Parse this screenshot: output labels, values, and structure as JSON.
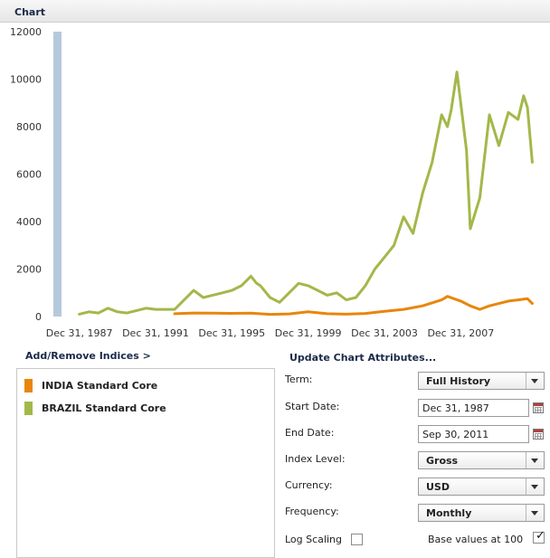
{
  "header": {
    "title": "Chart"
  },
  "chart_data": {
    "type": "line",
    "ylim": [
      0,
      12000
    ],
    "y_ticks": [
      0,
      2000,
      4000,
      6000,
      8000,
      10000,
      12000
    ],
    "x_range": [
      1986.5,
      2012.3
    ],
    "x_ticks": [
      {
        "label": "Dec 31, 1987",
        "year": 1988.0
      },
      {
        "label": "Dec 31, 1991",
        "year": 1992.0
      },
      {
        "label": "Dec 31, 1995",
        "year": 1996.0
      },
      {
        "label": "Dec 31, 1999",
        "year": 2000.0
      },
      {
        "label": "Dec 31, 2003",
        "year": 2004.0
      },
      {
        "label": "Dec 31, 2007",
        "year": 2008.0
      }
    ],
    "grid": false,
    "series": [
      {
        "name": "INDIA Standard Core",
        "color": "#e8860c",
        "x": [
          1993.0,
          1994.0,
          1995.0,
          1996.0,
          1997.0,
          1998.0,
          1999.0,
          2000.0,
          2001.0,
          2002.0,
          2003.0,
          2004.0,
          2005.0,
          2006.0,
          2007.0,
          2007.3,
          2008.0,
          2008.5,
          2009.0,
          2009.5,
          2010.0,
          2010.5,
          2011.0,
          2011.5,
          2011.75
        ],
        "y": [
          120,
          150,
          140,
          135,
          140,
          90,
          110,
          200,
          120,
          100,
          130,
          220,
          300,
          450,
          700,
          850,
          650,
          450,
          300,
          450,
          550,
          650,
          700,
          750,
          550
        ]
      },
      {
        "name": "BRAZIL Standard Core",
        "color": "#a3b84a",
        "x": [
          1988.0,
          1988.5,
          1989.0,
          1989.5,
          1990.0,
          1990.5,
          1991.0,
          1991.5,
          1992.0,
          1993.0,
          1993.5,
          1994.0,
          1994.5,
          1995.0,
          1995.5,
          1996.0,
          1996.5,
          1997.0,
          1997.3,
          1997.5,
          1998.0,
          1998.5,
          1999.0,
          1999.5,
          2000.0,
          2000.5,
          2001.0,
          2001.5,
          2002.0,
          2002.5,
          2003.0,
          2003.5,
          2004.0,
          2004.5,
          2005.0,
          2005.5,
          2006.0,
          2006.5,
          2007.0,
          2007.3,
          2007.5,
          2007.8,
          2008.0,
          2008.3,
          2008.5,
          2009.0,
          2009.5,
          2010.0,
          2010.5,
          2011.0,
          2011.3,
          2011.5,
          2011.75
        ],
        "y": [
          100,
          200,
          150,
          350,
          200,
          150,
          250,
          350,
          300,
          300,
          700,
          1100,
          800,
          900,
          1000,
          1100,
          1300,
          1700,
          1400,
          1300,
          800,
          600,
          1000,
          1400,
          1300,
          1100,
          900,
          1000,
          700,
          800,
          1300,
          2000,
          2500,
          3000,
          4200,
          3500,
          5200,
          6500,
          8500,
          8000,
          8700,
          10300,
          9000,
          7000,
          3700,
          5000,
          8500,
          7200,
          8600,
          8300,
          9300,
          8800,
          6500
        ]
      }
    ]
  },
  "labels": {
    "add_remove": "Add/Remove Indices >",
    "update_attributes": "Update Chart Attributes..."
  },
  "legend": [
    {
      "name": "INDIA Standard Core",
      "color": "#e8860c"
    },
    {
      "name": "BRAZIL Standard Core",
      "color": "#a3b84a"
    }
  ],
  "attributes": {
    "term_label": "Term:",
    "term_value": "Full History",
    "start_label": "Start Date:",
    "start_value": "Dec 31, 1987",
    "end_label": "End Date:",
    "end_value": "Sep 30, 2011",
    "index_level_label": "Index Level:",
    "index_level_value": "Gross",
    "currency_label": "Currency:",
    "currency_value": "USD",
    "frequency_label": "Frequency:",
    "frequency_value": "Monthly",
    "log_scaling_label": "Log Scaling",
    "log_scaling_checked": false,
    "base_values_label": "Base values at 100",
    "base_values_checked": true
  },
  "icons": {
    "calendar": "calendar-icon",
    "dropdown": "chevron-down-icon",
    "checkmark": "checkmark-icon"
  }
}
